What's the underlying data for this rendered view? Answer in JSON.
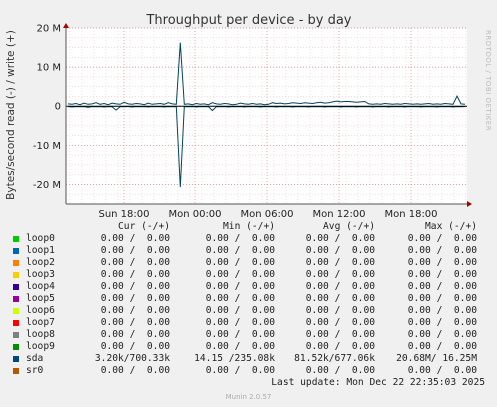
{
  "chart_data": {
    "type": "line",
    "title": "Throughput per device - by day",
    "ylabel": "Bytes/second read (-) / write (+)",
    "ylim": [
      -25000000,
      20000000
    ],
    "yticks": [
      {
        "value": 20000000,
        "label": "20 M"
      },
      {
        "value": 10000000,
        "label": "10 M"
      },
      {
        "value": 0,
        "label": "0"
      },
      {
        "value": -10000000,
        "label": "-10 M"
      },
      {
        "value": -20000000,
        "label": "-20 M"
      }
    ],
    "xticks": [
      "Sun 18:00",
      "Mon 00:00",
      "Mon 06:00",
      "Mon 12:00",
      "Mon 18:00"
    ],
    "grid": true,
    "series": [
      {
        "name": "sda",
        "color": "#00455e",
        "x": [
          0,
          1,
          2,
          3,
          4,
          5,
          6,
          7,
          8,
          9,
          10,
          11,
          12,
          13,
          14,
          15,
          16,
          17,
          18,
          19,
          20,
          21,
          22,
          23,
          24,
          25,
          26,
          27,
          28,
          29,
          30,
          31,
          32,
          33,
          34,
          35,
          36,
          37,
          38,
          39,
          40,
          41,
          42,
          43,
          44,
          45,
          46,
          47,
          48,
          49,
          50,
          51,
          52,
          53,
          54,
          55,
          56,
          57,
          58,
          59,
          60,
          61,
          62,
          63,
          64,
          65,
          66,
          67,
          68,
          69,
          70,
          71,
          72,
          73,
          74,
          75,
          76,
          77,
          78,
          79,
          80,
          81,
          82,
          83,
          84,
          85,
          86,
          87,
          88,
          89,
          90,
          91,
          92,
          93,
          94,
          95,
          96,
          97,
          98,
          99
        ],
        "write": [
          600000,
          500000,
          700000,
          400000,
          800000,
          500000,
          600000,
          900000,
          500000,
          700000,
          400000,
          800000,
          600000,
          500000,
          1000000,
          600000,
          500000,
          700000,
          600000,
          400000,
          800000,
          500000,
          600000,
          700000,
          500000,
          900000,
          600000,
          500000,
          16250000,
          500000,
          600000,
          400000,
          700000,
          500000,
          600000,
          400000,
          900000,
          600000,
          500000,
          700000,
          600000,
          400000,
          500000,
          800000,
          600000,
          500000,
          700000,
          500000,
          600000,
          400000,
          500000,
          900000,
          700000,
          800000,
          600000,
          700000,
          900000,
          800000,
          700000,
          900000,
          800000,
          700000,
          900000,
          1000000,
          800000,
          900000,
          1100000,
          1300000,
          1100000,
          1200000,
          1200000,
          1100000,
          1000000,
          1100000,
          1200000,
          600000,
          500000,
          600000,
          500000,
          700000,
          600000,
          500000,
          600000,
          500000,
          700000,
          600000,
          500000,
          600000,
          500000,
          600000,
          700000,
          500000,
          600000,
          500000,
          700000,
          600000,
          500000,
          2600000,
          600000,
          500000
        ],
        "read": [
          -100000,
          -200000,
          -100000,
          -150000,
          -100000,
          -300000,
          -100000,
          -150000,
          -100000,
          -200000,
          -100000,
          -150000,
          -1000000,
          -100000,
          -150000,
          -100000,
          -200000,
          -100000,
          -150000,
          -100000,
          -200000,
          -100000,
          -150000,
          -100000,
          -200000,
          -100000,
          -150000,
          -100000,
          -20680000,
          -100000,
          -150000,
          -100000,
          -200000,
          -100000,
          -150000,
          -100000,
          -1100000,
          -100000,
          -150000,
          -100000,
          -200000,
          -100000,
          -150000,
          -100000,
          -200000,
          -100000,
          -150000,
          -100000,
          -200000,
          -100000,
          -150000,
          -100000,
          -200000,
          -100000,
          -150000,
          -100000,
          -200000,
          -100000,
          -150000,
          -100000,
          -200000,
          -100000,
          -150000,
          -100000,
          -200000,
          -100000,
          -150000,
          -100000,
          -200000,
          -100000,
          -150000,
          -100000,
          -200000,
          -100000,
          -150000,
          -100000,
          -200000,
          -100000,
          -150000,
          -100000,
          -200000,
          -100000,
          -150000,
          -100000,
          -200000,
          -100000,
          -150000,
          -100000,
          -200000,
          -100000,
          -150000,
          -100000,
          -200000,
          -100000,
          -150000,
          -100000,
          -200000,
          -100000,
          -150000,
          -100000
        ]
      }
    ]
  },
  "watermark": "RRDTOOL / TOBI OETIKER",
  "legend": {
    "headers": {
      "cur": "Cur (-/+)",
      "min": "Min (-/+)",
      "avg": "Avg (-/+)",
      "max": "Max (-/+)"
    },
    "rows": [
      {
        "name": "loop0",
        "color": "#00cc00",
        "cur": "0.00 /  0.00",
        "min": "0.00 /  0.00",
        "avg": "0.00 /  0.00",
        "max": "0.00 /  0.00"
      },
      {
        "name": "loop1",
        "color": "#0066b3",
        "cur": "0.00 /  0.00",
        "min": "0.00 /  0.00",
        "avg": "0.00 /  0.00",
        "max": "0.00 /  0.00"
      },
      {
        "name": "loop2",
        "color": "#ff8000",
        "cur": "0.00 /  0.00",
        "min": "0.00 /  0.00",
        "avg": "0.00 /  0.00",
        "max": "0.00 /  0.00"
      },
      {
        "name": "loop3",
        "color": "#ffcc00",
        "cur": "0.00 /  0.00",
        "min": "0.00 /  0.00",
        "avg": "0.00 /  0.00",
        "max": "0.00 /  0.00"
      },
      {
        "name": "loop4",
        "color": "#330099",
        "cur": "0.00 /  0.00",
        "min": "0.00 /  0.00",
        "avg": "0.00 /  0.00",
        "max": "0.00 /  0.00"
      },
      {
        "name": "loop5",
        "color": "#990099",
        "cur": "0.00 /  0.00",
        "min": "0.00 /  0.00",
        "avg": "0.00 /  0.00",
        "max": "0.00 /  0.00"
      },
      {
        "name": "loop6",
        "color": "#ccff00",
        "cur": "0.00 /  0.00",
        "min": "0.00 /  0.00",
        "avg": "0.00 /  0.00",
        "max": "0.00 /  0.00"
      },
      {
        "name": "loop7",
        "color": "#ff0000",
        "cur": "0.00 /  0.00",
        "min": "0.00 /  0.00",
        "avg": "0.00 /  0.00",
        "max": "0.00 /  0.00"
      },
      {
        "name": "loop8",
        "color": "#808080",
        "cur": "0.00 /  0.00",
        "min": "0.00 /  0.00",
        "avg": "0.00 /  0.00",
        "max": "0.00 /  0.00"
      },
      {
        "name": "loop9",
        "color": "#008f00",
        "cur": "0.00 /  0.00",
        "min": "0.00 /  0.00",
        "avg": "0.00 /  0.00",
        "max": "0.00 /  0.00"
      },
      {
        "name": "sda",
        "color": "#00487d",
        "cur": "3.20k/700.33k",
        "min": "14.15 /235.08k",
        "avg": "81.52k/677.06k",
        "max": "20.68M/ 16.25M"
      },
      {
        "name": "sr0",
        "color": "#b35a00",
        "cur": "0.00 /  0.00",
        "min": "0.00 /  0.00",
        "avg": "0.00 /  0.00",
        "max": "0.00 /  0.00"
      }
    ]
  },
  "last_update": "Last update: Mon Dec 22 22:35:03 2025",
  "generator": "Munin 2.0.57"
}
